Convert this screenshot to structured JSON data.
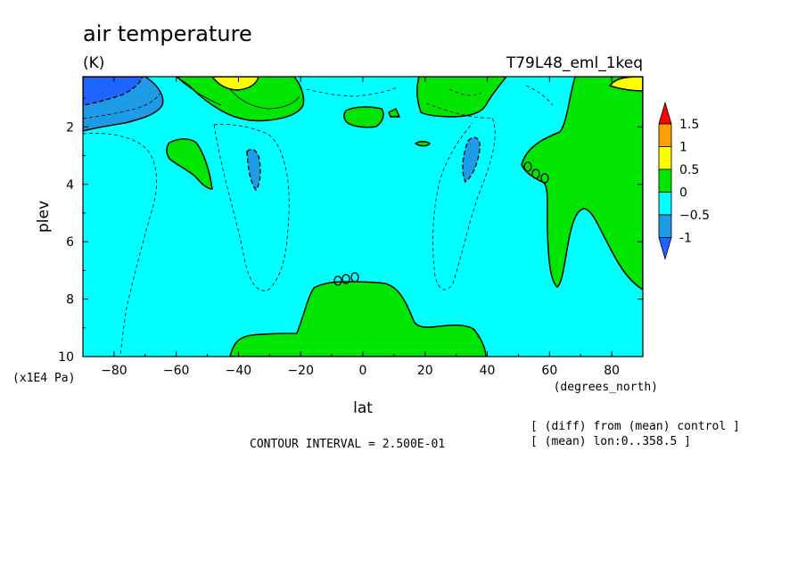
{
  "chart_data": {
    "type": "contour",
    "title": "air temperature",
    "units": "(K)",
    "run_label": "T79L48_eml_1keq",
    "xlabel": "lat",
    "x_units": "(degrees_north)",
    "ylabel": "plev",
    "y_units": "(x1E4 Pa)",
    "xlim": [
      -90,
      90
    ],
    "ylim": [
      10,
      0.25
    ],
    "x_ticks": [
      -80,
      -60,
      -40,
      -20,
      0,
      20,
      40,
      60,
      80
    ],
    "y_ticks": [
      2,
      4,
      6,
      8,
      10
    ],
    "contour_interval_text": "CONTOUR INTERVAL = 2.500E-01",
    "notes": [
      "[ (diff) from (mean) control ]",
      "[ (mean) lon:0..358.5 ]"
    ],
    "colorbar": {
      "levels": [
        -1,
        -0.5,
        0,
        0.5,
        1,
        1.5
      ],
      "labels": [
        "-1",
        "−0.5",
        "0",
        "0.5",
        "1",
        "1.5"
      ],
      "colors": [
        "#1e64ff",
        "#1e9be6",
        "#00ffff",
        "#00e600",
        "#ffff00",
        "#ffa000",
        "#ff0000"
      ],
      "extend": "both"
    },
    "regions": [
      {
        "name": "background",
        "range": [
          -0.5,
          0
        ],
        "color": "#00ffff"
      },
      {
        "name": "sh-polar-stratosphere",
        "range": [
          -1.25,
          -0.5
        ],
        "color": "#1e9be6"
      },
      {
        "name": "sh-polar-stratosphere-core",
        "range": [
          -1.5,
          -1
        ],
        "color": "#1e64ff"
      },
      {
        "name": "sh-midlat-upper-warm",
        "range": [
          0,
          0.5
        ],
        "color": "#00e600"
      },
      {
        "name": "sh-midlat-upper-warm-core",
        "range": [
          0.5,
          1
        ],
        "color": "#ffff00"
      },
      {
        "name": "tropical-lower-troposphere-warm",
        "range": [
          0,
          0.25
        ],
        "color": "#00e600"
      },
      {
        "name": "nh-high-latitude-warm",
        "range": [
          0,
          0.5
        ],
        "color": "#00e600"
      },
      {
        "name": "nh-polar-top-warm",
        "range": [
          0.5,
          1
        ],
        "color": "#ffff00"
      },
      {
        "name": "sh-subtropical-cool-pocket",
        "range": [
          -0.75,
          -0.5
        ],
        "color": "#1e9be6"
      },
      {
        "name": "nh-subtropical-cool-pocket",
        "range": [
          -0.75,
          -0.5
        ],
        "color": "#1e9be6"
      }
    ]
  }
}
